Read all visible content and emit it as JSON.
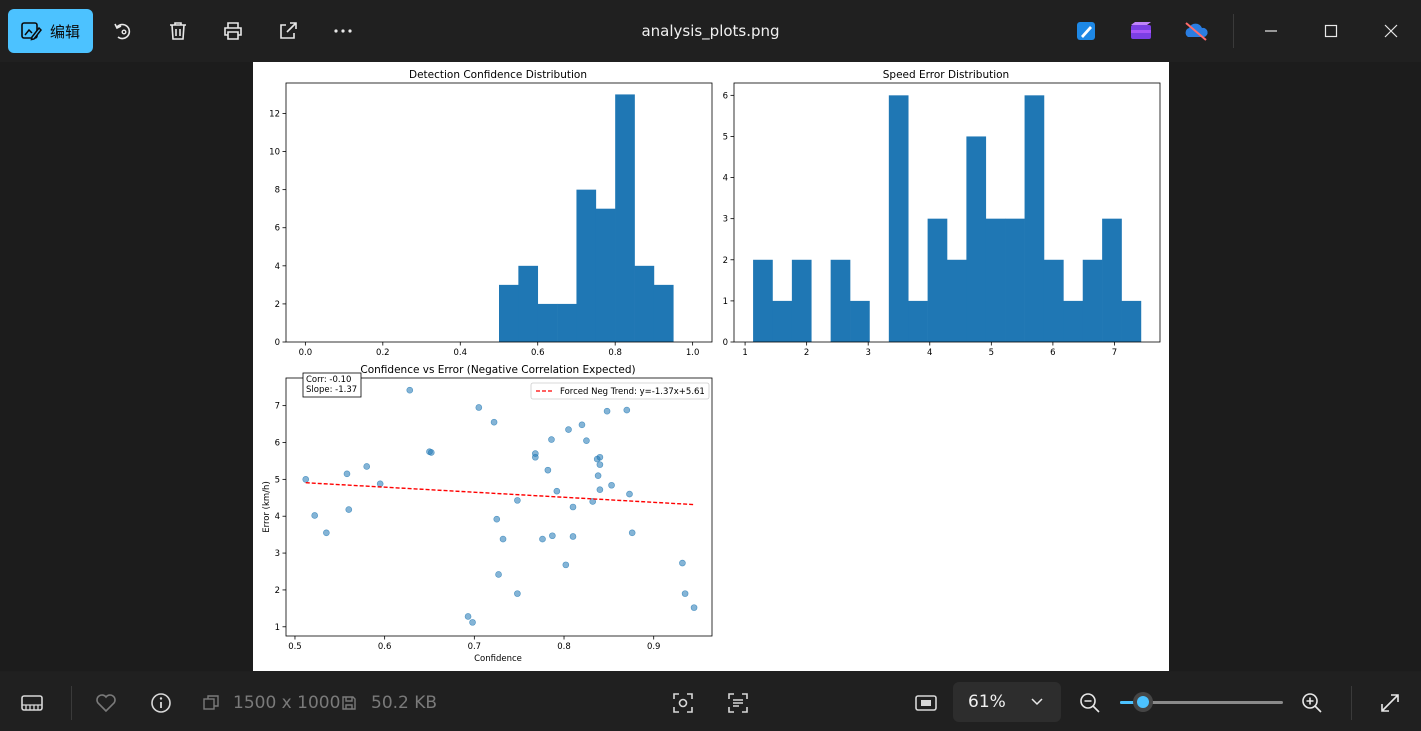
{
  "titlebar": {
    "edit_label": "编辑",
    "filename": "analysis_plots.png"
  },
  "bottombar": {
    "dimensions": "1500 x 1000",
    "filesize": "50.2 KB",
    "zoom": "61%",
    "zoom_fraction": 0.14
  },
  "chart_data": [
    {
      "type": "bar",
      "title": "Detection Confidence Distribution",
      "xlabel": "",
      "ylabel": "",
      "bin_edges": [
        0.5,
        0.55,
        0.6,
        0.65,
        0.7,
        0.75,
        0.8,
        0.85,
        0.9,
        0.95
      ],
      "values": [
        3,
        4,
        2,
        2,
        8,
        7,
        13,
        4,
        3
      ],
      "xlim": [
        -0.05,
        1.05
      ],
      "ylim": [
        0,
        13.6
      ],
      "xticks": [
        "0.0",
        "0.2",
        "0.4",
        "0.6",
        "0.8",
        "1.0"
      ],
      "yticks": [
        "0",
        "2",
        "4",
        "6",
        "8",
        "10",
        "12"
      ],
      "color": "#1f77b4"
    },
    {
      "type": "bar",
      "title": "Speed Error Distribution",
      "xlabel": "",
      "ylabel": "",
      "bin_edges": [
        1.13,
        1.445,
        1.76,
        2.075,
        2.39,
        2.705,
        3.02,
        3.335,
        3.65,
        3.965,
        4.28,
        4.595,
        4.91,
        5.225,
        5.54,
        5.855,
        6.17,
        6.485,
        6.8,
        7.115,
        7.43
      ],
      "values": [
        2,
        1,
        2,
        0,
        2,
        1,
        0,
        6,
        1,
        3,
        2,
        5,
        3,
        3,
        6,
        2,
        1,
        2,
        3,
        1
      ],
      "xlim": [
        0.82,
        7.74
      ],
      "ylim": [
        0,
        6.3
      ],
      "xticks": [
        "1",
        "2",
        "3",
        "4",
        "5",
        "6",
        "7"
      ],
      "yticks": [
        "0",
        "1",
        "2",
        "3",
        "4",
        "5",
        "6"
      ],
      "color": "#1f77b4"
    },
    {
      "type": "scatter",
      "title": "Confidence vs Error (Negative Correlation Expected)",
      "xlabel": "Confidence",
      "ylabel": "Error (km/h)",
      "xlim": [
        0.49,
        0.965
      ],
      "ylim": [
        0.75,
        7.75
      ],
      "xticks": [
        "0.5",
        "0.6",
        "0.7",
        "0.8",
        "0.9"
      ],
      "yticks": [
        "1",
        "2",
        "3",
        "4",
        "5",
        "6",
        "7"
      ],
      "points": [
        [
          0.512,
          5.0
        ],
        [
          0.522,
          4.02
        ],
        [
          0.535,
          3.55
        ],
        [
          0.558,
          5.15
        ],
        [
          0.56,
          4.18
        ],
        [
          0.58,
          5.35
        ],
        [
          0.595,
          4.88
        ],
        [
          0.628,
          7.42
        ],
        [
          0.65,
          5.75
        ],
        [
          0.652,
          5.73
        ],
        [
          0.693,
          1.28
        ],
        [
          0.698,
          1.12
        ],
        [
          0.705,
          6.95
        ],
        [
          0.722,
          6.55
        ],
        [
          0.725,
          3.92
        ],
        [
          0.727,
          2.42
        ],
        [
          0.732,
          3.38
        ],
        [
          0.748,
          4.43
        ],
        [
          0.748,
          1.9
        ],
        [
          0.768,
          5.7
        ],
        [
          0.768,
          5.6
        ],
        [
          0.776,
          3.38
        ],
        [
          0.782,
          5.25
        ],
        [
          0.786,
          6.08
        ],
        [
          0.787,
          3.47
        ],
        [
          0.792,
          4.68
        ],
        [
          0.802,
          2.68
        ],
        [
          0.805,
          6.35
        ],
        [
          0.81,
          3.45
        ],
        [
          0.81,
          4.25
        ],
        [
          0.82,
          6.48
        ],
        [
          0.825,
          6.05
        ],
        [
          0.832,
          4.4
        ],
        [
          0.837,
          5.55
        ],
        [
          0.838,
          5.1
        ],
        [
          0.84,
          5.6
        ],
        [
          0.84,
          5.4
        ],
        [
          0.84,
          4.72
        ],
        [
          0.848,
          6.85
        ],
        [
          0.853,
          4.84
        ],
        [
          0.87,
          6.88
        ],
        [
          0.873,
          4.6
        ],
        [
          0.876,
          3.55
        ],
        [
          0.932,
          2.73
        ],
        [
          0.935,
          1.9
        ],
        [
          0.945,
          1.52
        ]
      ],
      "point_color": "#1f77b4",
      "trend": {
        "label": "Forced Neg Trend: y=-1.37x+5.61",
        "slope": -1.37,
        "intercept": 5.61,
        "x_range": [
          0.512,
          0.945
        ],
        "color": "#ff0000"
      },
      "annotation": [
        "Corr: -0.10",
        "Slope: -1.37"
      ],
      "legend_position": "top-right"
    }
  ]
}
